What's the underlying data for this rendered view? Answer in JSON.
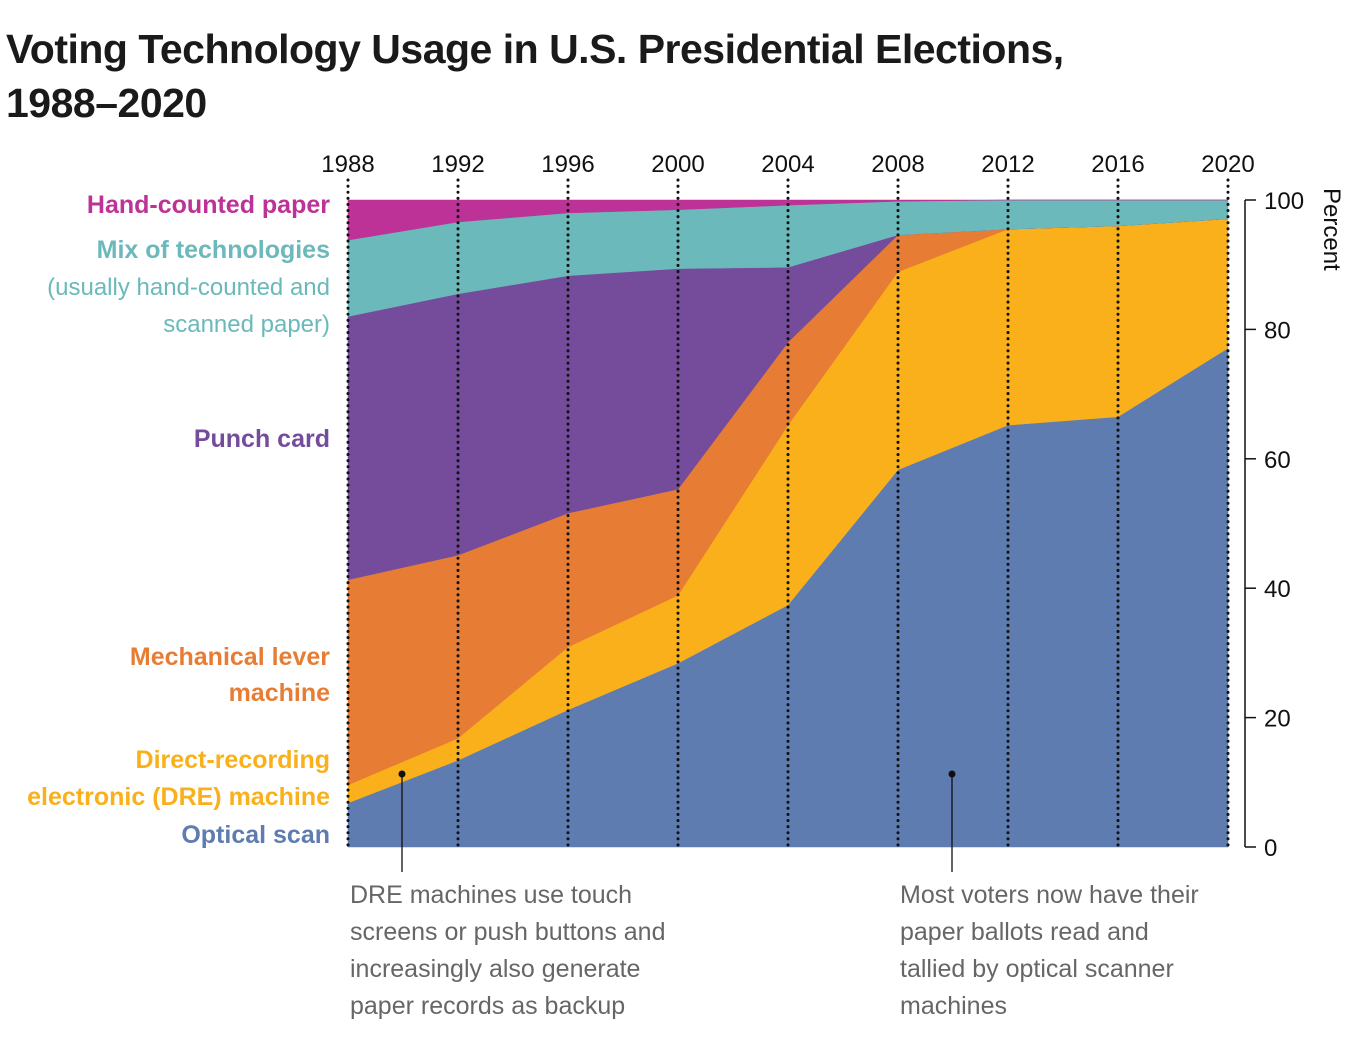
{
  "chart_data": {
    "type": "area",
    "stacked": true,
    "title": "Voting Technology Usage in U.S. Presidential Elections, 1988–2020",
    "ylabel": "Percent",
    "ylim": [
      0,
      100
    ],
    "yticks": [
      0,
      20,
      40,
      60,
      80,
      100
    ],
    "y_axis_side": "right",
    "grid": "dotted vertical lines at each election year",
    "legend": "direct labels on left",
    "x": [
      "1988",
      "1992",
      "1996",
      "2000",
      "2004",
      "2008",
      "2012",
      "2016",
      "2020"
    ],
    "series": [
      {
        "name": "Optical scan",
        "color": "#5e7cb0",
        "values": [
          6.8,
          13.4,
          21.2,
          28.4,
          37.4,
          58.3,
          65.2,
          66.5,
          77.1
        ]
      },
      {
        "name": "Direct-recording electronic (DRE) machine",
        "color": "#fab01a",
        "values": [
          2.8,
          3.4,
          9.7,
          10.5,
          27.8,
          30.6,
          30.3,
          29.5,
          20.0
        ]
      },
      {
        "name": "Mechanical lever machine",
        "color": "#e77d35",
        "values": [
          31.7,
          28.3,
          20.7,
          16.4,
          12.8,
          5.7,
          0,
          0,
          0
        ]
      },
      {
        "name": "Punch card",
        "color": "#754c9b",
        "values": [
          40.7,
          40.4,
          36.7,
          34.1,
          11.6,
          0,
          0,
          0,
          0
        ]
      },
      {
        "name": "Mix of technologies",
        "name_note": "(usually hand-counted and scanned paper)",
        "color": "#6bb9ba",
        "values": [
          11.8,
          11.1,
          9.7,
          9.1,
          9.6,
          5.2,
          4.5,
          4.0,
          2.9
        ]
      },
      {
        "name": "Hand-counted paper",
        "color": "#bc3296",
        "values": [
          6.2,
          3.4,
          2.0,
          1.5,
          0.8,
          0.2,
          0,
          0,
          0
        ]
      }
    ],
    "label_lines": {
      "mix_sub1": "(usually hand-counted and",
      "mix_sub2": "scanned paper)",
      "lever1": "Mechanical lever",
      "lever2": "machine",
      "dre1": "Direct-recording",
      "dre2": "electronic (DRE) machine"
    },
    "annotations": [
      {
        "lines": [
          "DRE machines use touch",
          "screens or push buttons and",
          "increasingly also generate",
          "paper records as backup"
        ]
      },
      {
        "lines": [
          "Most voters now have their",
          "paper ballots read and",
          "tallied by optical scanner",
          "machines"
        ]
      }
    ]
  }
}
